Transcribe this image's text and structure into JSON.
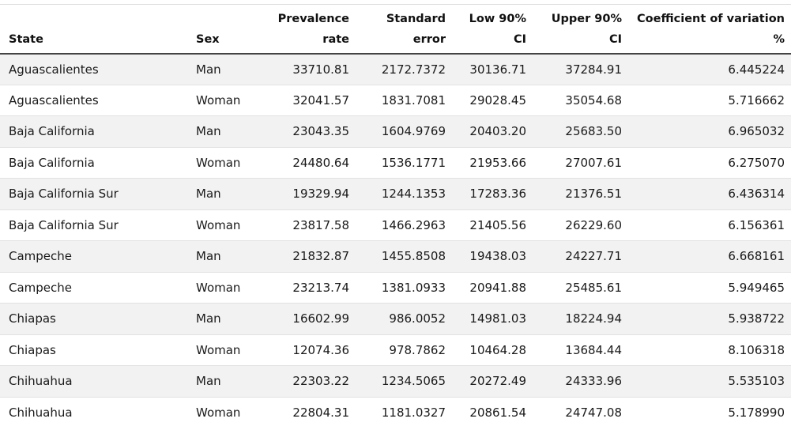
{
  "table": {
    "headers": {
      "state": "State",
      "sex": "Sex",
      "prevalence": "Prevalence rate",
      "std_error": "Standard error",
      "low_ci": "Low 90% CI",
      "upper_ci": "Upper 90% CI",
      "cv": "Coefficient of variation %"
    },
    "rows": [
      {
        "state": "Aguascalientes",
        "sex": "Man",
        "prevalence": "33710.81",
        "std_error": "2172.7372",
        "low_ci": "30136.71",
        "upper_ci": "37284.91",
        "cv": "6.445224"
      },
      {
        "state": "Aguascalientes",
        "sex": "Woman",
        "prevalence": "32041.57",
        "std_error": "1831.7081",
        "low_ci": "29028.45",
        "upper_ci": "35054.68",
        "cv": "5.716662"
      },
      {
        "state": "Baja California",
        "sex": "Man",
        "prevalence": "23043.35",
        "std_error": "1604.9769",
        "low_ci": "20403.20",
        "upper_ci": "25683.50",
        "cv": "6.965032"
      },
      {
        "state": "Baja California",
        "sex": "Woman",
        "prevalence": "24480.64",
        "std_error": "1536.1771",
        "low_ci": "21953.66",
        "upper_ci": "27007.61",
        "cv": "6.275070"
      },
      {
        "state": "Baja California Sur",
        "sex": "Man",
        "prevalence": "19329.94",
        "std_error": "1244.1353",
        "low_ci": "17283.36",
        "upper_ci": "21376.51",
        "cv": "6.436314"
      },
      {
        "state": "Baja California Sur",
        "sex": "Woman",
        "prevalence": "23817.58",
        "std_error": "1466.2963",
        "low_ci": "21405.56",
        "upper_ci": "26229.60",
        "cv": "6.156361"
      },
      {
        "state": "Campeche",
        "sex": "Man",
        "prevalence": "21832.87",
        "std_error": "1455.8508",
        "low_ci": "19438.03",
        "upper_ci": "24227.71",
        "cv": "6.668161"
      },
      {
        "state": "Campeche",
        "sex": "Woman",
        "prevalence": "23213.74",
        "std_error": "1381.0933",
        "low_ci": "20941.88",
        "upper_ci": "25485.61",
        "cv": "5.949465"
      },
      {
        "state": "Chiapas",
        "sex": "Man",
        "prevalence": "16602.99",
        "std_error": "986.0052",
        "low_ci": "14981.03",
        "upper_ci": "18224.94",
        "cv": "5.938722"
      },
      {
        "state": "Chiapas",
        "sex": "Woman",
        "prevalence": "12074.36",
        "std_error": "978.7862",
        "low_ci": "10464.28",
        "upper_ci": "13684.44",
        "cv": "8.106318"
      },
      {
        "state": "Chihuahua",
        "sex": "Man",
        "prevalence": "22303.22",
        "std_error": "1234.5065",
        "low_ci": "20272.49",
        "upper_ci": "24333.96",
        "cv": "5.535103"
      },
      {
        "state": "Chihuahua",
        "sex": "Woman",
        "prevalence": "22804.31",
        "std_error": "1181.0327",
        "low_ci": "20861.54",
        "upper_ci": "24747.08",
        "cv": "5.178990"
      }
    ]
  }
}
